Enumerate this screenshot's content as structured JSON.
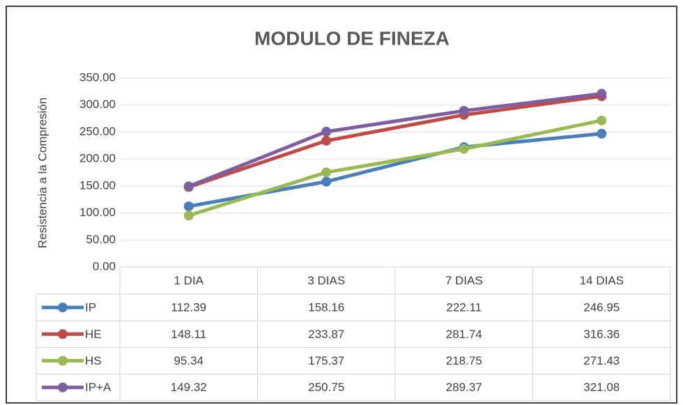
{
  "chart_data": {
    "type": "line",
    "title": "MODULO DE FINEZA",
    "y_label": "Resistencia a la Compresión",
    "categories": [
      "1 DIA",
      "3 DIAS",
      "7 DIAS",
      "14 DIAS"
    ],
    "series": [
      {
        "name": "IP",
        "color": "#4a7ebb",
        "values": [
          112.39,
          158.16,
          222.11,
          246.95
        ]
      },
      {
        "name": "HE",
        "color": "#be4b48",
        "values": [
          148.11,
          233.87,
          281.74,
          316.36
        ]
      },
      {
        "name": "HS",
        "color": "#98b954",
        "values": [
          95.34,
          175.37,
          218.75,
          271.43
        ]
      },
      {
        "name": "IP+A",
        "color": "#7d5fa0",
        "values": [
          149.32,
          250.75,
          289.37,
          321.08
        ]
      }
    ],
    "ylim": [
      0,
      350
    ],
    "yticks": [
      {
        "value": 0,
        "label": "0.00"
      },
      {
        "value": 50,
        "label": "50.00"
      },
      {
        "value": 100,
        "label": "100.00"
      },
      {
        "value": 150,
        "label": "150.00"
      },
      {
        "value": 200,
        "label": "200.00"
      },
      {
        "value": 250,
        "label": "250.00"
      },
      {
        "value": 300,
        "label": "300.00"
      },
      {
        "value": 350,
        "label": "350.00"
      }
    ],
    "grid": true
  }
}
